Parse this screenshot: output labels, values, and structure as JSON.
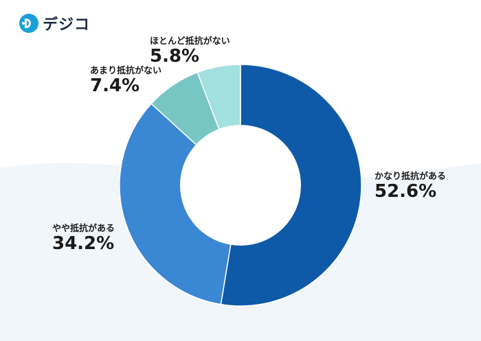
{
  "logo": {
    "text": "デジコ"
  },
  "colors": {
    "background_wave": "#f1f6fa",
    "hole": "#ffffff"
  },
  "chart_data": {
    "type": "pie",
    "style": "donut",
    "title": "",
    "slices": [
      {
        "label": "かなり抵抗がある",
        "value": 52.6,
        "display": "52.6%",
        "color": "#0f5aa8"
      },
      {
        "label": "やや抵抗がある",
        "value": 34.2,
        "display": "34.2%",
        "color": "#3a87d3"
      },
      {
        "label": "あまり抵抗がない",
        "value": 7.4,
        "display": "7.4%",
        "color": "#78c6c4"
      },
      {
        "label": "ほとんど抵抗がない",
        "value": 5.8,
        "display": "5.8%",
        "color": "#a3e0e0"
      }
    ],
    "start_angle_deg": 0,
    "direction": "clockwise",
    "legend": "none"
  }
}
